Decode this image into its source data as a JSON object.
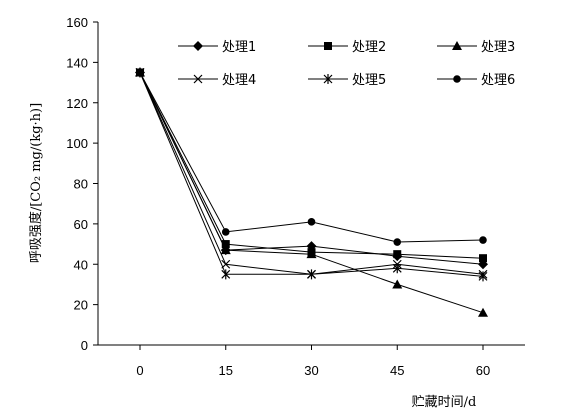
{
  "chart_data": {
    "type": "line",
    "title": "",
    "xlabel": "贮藏时间/d",
    "ylabel": "呼吸强度/[CO₂ mg/(kg·h)]",
    "x": [
      0,
      15,
      30,
      45,
      60
    ],
    "x_tick_labels": [
      "0",
      "15",
      "30",
      "45",
      "60"
    ],
    "ylim": [
      0,
      160
    ],
    "y_ticks": [
      0,
      20,
      40,
      60,
      80,
      100,
      120,
      140,
      160
    ],
    "y_tick_labels": [
      "0",
      "20",
      "40",
      "60",
      "80",
      "100",
      "120",
      "140",
      "160"
    ],
    "grid": false,
    "legend_position": "top",
    "series": [
      {
        "name": "处理1",
        "marker": "diamond",
        "values": [
          135,
          47,
          49,
          44,
          40
        ]
      },
      {
        "name": "处理2",
        "marker": "square",
        "values": [
          135,
          50,
          46,
          45,
          43
        ]
      },
      {
        "name": "处理3",
        "marker": "triangle",
        "values": [
          135,
          47,
          45,
          30,
          16
        ]
      },
      {
        "name": "处理4",
        "marker": "x",
        "values": [
          135,
          40,
          35,
          40,
          35
        ]
      },
      {
        "name": "处理5",
        "marker": "asterisk",
        "values": [
          135,
          35,
          35,
          38,
          34
        ]
      },
      {
        "name": "处理6",
        "marker": "circle",
        "values": [
          135,
          56,
          61,
          51,
          52
        ]
      }
    ]
  }
}
